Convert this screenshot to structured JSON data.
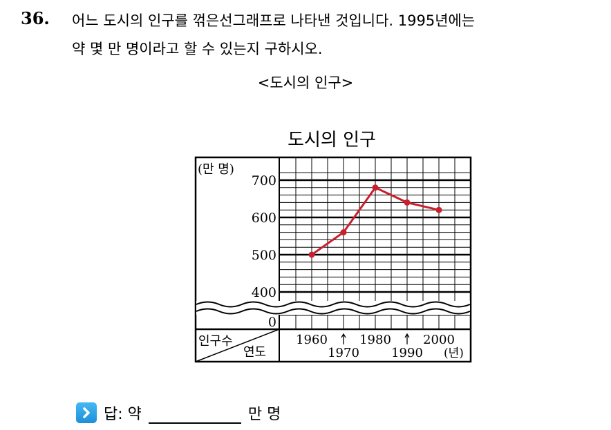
{
  "question": {
    "number": "36.",
    "line1": "어느 도시의 인구를 꺾은선그래프로 나타낸 것입니다. 1995년에는",
    "line2": "약 몇 만 명이라고 할 수 있는지 구하시오.",
    "caption": "<도시의 인구>"
  },
  "chart_data": {
    "type": "line",
    "title": "도시의 인구",
    "unit_label": "(만 명)",
    "row_header": "인구수",
    "col_header": "연도",
    "year_unit": "(년)",
    "x": [
      1960,
      1970,
      1980,
      1990,
      2000
    ],
    "x_tick_labels_top": [
      "1960",
      "1980",
      "2000"
    ],
    "x_tick_labels_bottom": [
      "1970",
      "1990"
    ],
    "y_tick_labels": [
      "700",
      "600",
      "500",
      "400",
      "0"
    ],
    "series": [
      {
        "values": [
          500,
          560,
          680,
          640,
          620
        ]
      }
    ],
    "ylim": [
      400,
      720
    ],
    "axis_break": true,
    "grid": true,
    "line_color": "#c8202c"
  },
  "answer": {
    "prefix": "답: 약",
    "suffix": "만 명"
  }
}
